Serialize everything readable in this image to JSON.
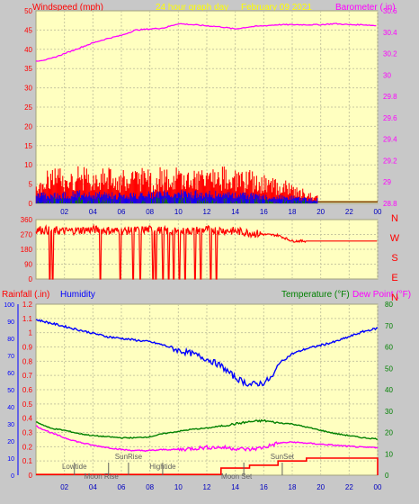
{
  "header": {
    "title": "24 hour graph day",
    "date": "February 09 2021"
  },
  "colors": {
    "background": "#c8c8c8",
    "plot_bg": "#ffffc0",
    "grid": "#c8c8a0",
    "wind": "#ff0000",
    "wind_gust": "#ff0000",
    "wind_avg": "#0000ff",
    "wind_low": "#008000",
    "barometer": "#ff00ff",
    "direction": "#ff0000",
    "humidity": "#0000ff",
    "temperature": "#008000",
    "dewpoint": "#ff00ff",
    "rain": "#ff0000",
    "title": "#ffff00",
    "left_axis": "#ff0000",
    "right_axis": "#ff00ff",
    "humidity_axis": "#0000ff",
    "temp_axis": "#008000",
    "x_axis": "#0000c0",
    "sun_moon": "#606060"
  },
  "chart_data": [
    {
      "type": "line",
      "left_label": "Windspeed (mph)",
      "right_label": "Barometer (.in)",
      "x_ticks": [
        "02",
        "04",
        "06",
        "08",
        "10",
        "12",
        "14",
        "16",
        "18",
        "20",
        "22",
        "00"
      ],
      "xlim": [
        0,
        24
      ],
      "left_ylim": [
        0,
        50
      ],
      "left_ticks": [
        "0",
        "5",
        "10",
        "15",
        "20",
        "25",
        "30",
        "35",
        "40",
        "45",
        "50"
      ],
      "right_ylim": [
        28.8,
        30.6
      ],
      "right_ticks": [
        "28.8",
        "29",
        "29.2",
        "29.4",
        "29.6",
        "29.8",
        "30",
        "30.2",
        "30.4",
        "30.6"
      ],
      "series": [
        {
          "name": "Barometer",
          "axis": "right",
          "points": [
            [
              0,
              30.13
            ],
            [
              1,
              30.15
            ],
            [
              2,
              30.2
            ],
            [
              3,
              30.25
            ],
            [
              4,
              30.3
            ],
            [
              5,
              30.34
            ],
            [
              6,
              30.37
            ],
            [
              7,
              30.42
            ],
            [
              8,
              30.43
            ],
            [
              9,
              30.44
            ],
            [
              10,
              30.48
            ],
            [
              11,
              30.47
            ],
            [
              12,
              30.46
            ],
            [
              13,
              30.45
            ],
            [
              14,
              30.43
            ],
            [
              15,
              30.45
            ],
            [
              16,
              30.46
            ],
            [
              17,
              30.47
            ],
            [
              18,
              30.47
            ],
            [
              19,
              30.47
            ],
            [
              20,
              30.47
            ],
            [
              21,
              30.48
            ],
            [
              22,
              30.47
            ],
            [
              23,
              30.47
            ],
            [
              24,
              30.46
            ]
          ]
        },
        {
          "name": "Wind gust envelope",
          "axis": "left",
          "points": [
            [
              0,
              6
            ],
            [
              1,
              9
            ],
            [
              2,
              8
            ],
            [
              3,
              9
            ],
            [
              4,
              8
            ],
            [
              5,
              9
            ],
            [
              6,
              8
            ],
            [
              7,
              9
            ],
            [
              8,
              8
            ],
            [
              9,
              9
            ],
            [
              10,
              9
            ],
            [
              11,
              8
            ],
            [
              12,
              8
            ],
            [
              13,
              9
            ],
            [
              14,
              8
            ],
            [
              15,
              8
            ],
            [
              16,
              7
            ],
            [
              17,
              6
            ],
            [
              18,
              5
            ],
            [
              19,
              3
            ],
            [
              19.8,
              2
            ]
          ]
        },
        {
          "name": "Wind average",
          "axis": "left",
          "points": [
            [
              0,
              2
            ],
            [
              3,
              2.5
            ],
            [
              6,
              2
            ],
            [
              9,
              2.5
            ],
            [
              12,
              2.5
            ],
            [
              15,
              2
            ],
            [
              18,
              1.5
            ],
            [
              19.8,
              1
            ]
          ]
        },
        {
          "name": "Wind after sensor stop",
          "axis": "left",
          "points": [
            [
              19.8,
              0.4
            ],
            [
              24,
              0.4
            ]
          ]
        }
      ]
    },
    {
      "type": "line",
      "left_ticks": [
        "0",
        "90",
        "180",
        "270",
        "360"
      ],
      "left_ylim": [
        0,
        360
      ],
      "right_labels": [
        "N",
        "W",
        "S",
        "E",
        "N"
      ],
      "xlim": [
        0,
        24
      ],
      "series": [
        {
          "name": "Wind direction",
          "points": [
            [
              0,
              300
            ],
            [
              2,
              290
            ],
            [
              4,
              300
            ],
            [
              6,
              290
            ],
            [
              8,
              300
            ],
            [
              10,
              285
            ],
            [
              12,
              300
            ],
            [
              14,
              290
            ],
            [
              16,
              270
            ],
            [
              17,
              265
            ],
            [
              18,
              230
            ],
            [
              19,
              230
            ],
            [
              19.8,
              230
            ],
            [
              24,
              230
            ]
          ]
        }
      ]
    },
    {
      "type": "line",
      "left_label": "Rainfall (.in)",
      "left_label2": "Humidity",
      "right_label": "Temperature (°F)",
      "right_label2": "Dew Point (°F)",
      "xlim": [
        0,
        24
      ],
      "x_ticks": [
        "02",
        "04",
        "06",
        "08",
        "10",
        "12",
        "14",
        "16",
        "18",
        "20",
        "22",
        "00"
      ],
      "rain_ticks": [
        "0",
        "0.1",
        "0.2",
        "0.3",
        "0.4",
        "0.5",
        "0.6",
        "0.7",
        "0.8",
        "0.9",
        "1",
        "1.1",
        "1.2"
      ],
      "rain_ylim": [
        0,
        1.2
      ],
      "humidity_ticks": [
        "0",
        "10",
        "20",
        "30",
        "40",
        "50",
        "60",
        "70",
        "80",
        "90",
        "100"
      ],
      "humidity_ylim": [
        0,
        100
      ],
      "temp_ticks": [
        "0",
        "10",
        "20",
        "30",
        "40",
        "50",
        "60",
        "70",
        "80"
      ],
      "temp_ylim": [
        0,
        80
      ],
      "series": [
        {
          "name": "Humidity",
          "axis": "humidity",
          "points": [
            [
              0,
              91
            ],
            [
              1,
              89
            ],
            [
              2,
              87
            ],
            [
              3,
              85
            ],
            [
              4,
              83
            ],
            [
              5,
              81
            ],
            [
              6,
              80
            ],
            [
              7,
              79
            ],
            [
              8,
              78
            ],
            [
              9,
              76
            ],
            [
              10,
              73
            ],
            [
              11,
              71
            ],
            [
              12,
              68
            ],
            [
              13,
              64
            ],
            [
              14,
              57
            ],
            [
              15,
              53
            ],
            [
              16,
              54
            ],
            [
              16.7,
              58
            ],
            [
              17,
              65
            ],
            [
              18,
              71
            ],
            [
              19,
              74
            ],
            [
              20,
              76
            ],
            [
              21,
              78
            ],
            [
              22,
              81
            ],
            [
              23,
              84
            ],
            [
              24,
              86
            ]
          ]
        },
        {
          "name": "Temperature",
          "axis": "temp",
          "points": [
            [
              0,
              25
            ],
            [
              1,
              22
            ],
            [
              2,
              21
            ],
            [
              3,
              19.5
            ],
            [
              4,
              18.5
            ],
            [
              5,
              18
            ],
            [
              6,
              17.5
            ],
            [
              7,
              17.5
            ],
            [
              8,
              18
            ],
            [
              9,
              19.5
            ],
            [
              10,
              20.5
            ],
            [
              11,
              21.5
            ],
            [
              12,
              22
            ],
            [
              13,
              23
            ],
            [
              14,
              24
            ],
            [
              15,
              25
            ],
            [
              16,
              25.5
            ],
            [
              17,
              24.5
            ],
            [
              18,
              24
            ],
            [
              19,
              22.5
            ],
            [
              20,
              21
            ],
            [
              21,
              19.5
            ],
            [
              22,
              18.5
            ],
            [
              23,
              17.5
            ],
            [
              24,
              17
            ]
          ]
        },
        {
          "name": "Dew Point",
          "axis": "temp",
          "points": [
            [
              0,
              23
            ],
            [
              1,
              20
            ],
            [
              2,
              17.5
            ],
            [
              3,
              15.5
            ],
            [
              4,
              14
            ],
            [
              5,
              13
            ],
            [
              6,
              12
            ],
            [
              7,
              11.5
            ],
            [
              8,
              11.5
            ],
            [
              9,
              12
            ],
            [
              10,
              12
            ],
            [
              11,
              12.5
            ],
            [
              12,
              13
            ],
            [
              13,
              13
            ],
            [
              14,
              12.5
            ],
            [
              15,
              12
            ],
            [
              16,
              13
            ],
            [
              17,
              15
            ],
            [
              18,
              15.5
            ],
            [
              19,
              15
            ],
            [
              20,
              14.5
            ],
            [
              21,
              14
            ],
            [
              22,
              13.5
            ],
            [
              23,
              13
            ],
            [
              24,
              13
            ]
          ]
        },
        {
          "name": "Rainfall",
          "axis": "rain",
          "points": [
            [
              0,
              0.005
            ],
            [
              13,
              0.005
            ],
            [
              13,
              0.05
            ],
            [
              15,
              0.05
            ],
            [
              15,
              0.07
            ],
            [
              17,
              0.07
            ],
            [
              17,
              0.1
            ],
            [
              19,
              0.1
            ],
            [
              19,
              0.12
            ],
            [
              24,
              0.12
            ],
            [
              24,
              0
            ]
          ]
        }
      ],
      "annotations": [
        {
          "text": "Lowtide",
          "x": 2.7,
          "row": "upper"
        },
        {
          "text": "Moon Rise",
          "x": 5.1,
          "row": "lower"
        },
        {
          "text": "SunRise",
          "x": 6.5,
          "row": "top"
        },
        {
          "text": "Hightide",
          "x": 8.9,
          "row": "upper"
        },
        {
          "text": "Moon Set",
          "x": 14.6,
          "row": "lower"
        },
        {
          "text": "SunSet",
          "x": 17.3,
          "row": "top"
        }
      ]
    }
  ]
}
